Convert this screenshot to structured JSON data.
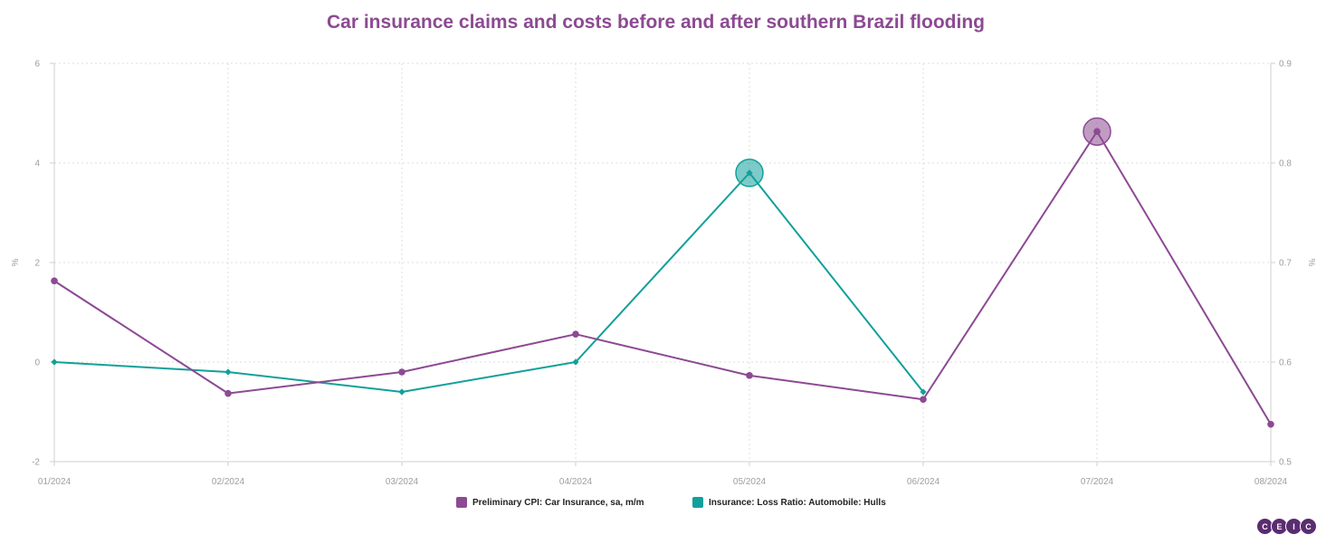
{
  "chart_data": {
    "type": "line",
    "title": "Car insurance claims and costs before and after southern Brazil flooding",
    "x": [
      "01/2024",
      "02/2024",
      "03/2024",
      "04/2024",
      "05/2024",
      "06/2024",
      "07/2024",
      "08/2024"
    ],
    "y_left_label": "%",
    "y_right_label": "%",
    "y_left_lim": [
      -2,
      6
    ],
    "y_left_ticks": [
      "-2",
      "0",
      "2",
      "4",
      "6"
    ],
    "y_right_lim": [
      0.5,
      0.9
    ],
    "y_right_ticks": [
      "0.5",
      "0.6",
      "0.7",
      "0.8",
      "0.9"
    ],
    "grid": true,
    "legend_position": "bottom-center",
    "series": [
      {
        "name": "Preliminary CPI: Car Insurance, sa, m/m",
        "axis": "left",
        "color": "#8c4a92",
        "values": [
          1.63,
          -0.63,
          -0.2,
          0.56,
          -0.27,
          -0.75,
          4.63,
          -1.25
        ],
        "highlight_index": 6
      },
      {
        "name": "Insurance: Loss Ratio: Automobile: Hulls",
        "axis": "right",
        "color": "#12a09a",
        "values": [
          0.6,
          0.59,
          0.57,
          0.6,
          0.79,
          0.57,
          null,
          null
        ],
        "highlight_index": 4
      }
    ]
  },
  "brand": {
    "letters": [
      "C",
      "E",
      "I",
      "C"
    ]
  }
}
